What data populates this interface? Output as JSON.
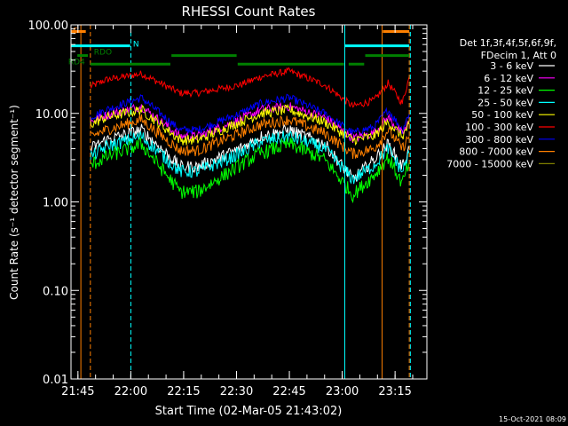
{
  "chart_data": {
    "type": "line",
    "title": "RHESSI Count Rates",
    "xlabel": "Start Time (02-Mar-05 21:43:02)",
    "ylabel": "Count Rate (s⁻¹ detector segment⁻¹)",
    "x_unit": "minutes since 21:43:02",
    "xlim": [
      0,
      101
    ],
    "ylim": [
      0.01,
      100
    ],
    "y_scale": "log",
    "y_ticks": [
      0.01,
      0.1,
      1,
      10,
      100
    ],
    "y_tick_labels": [
      "0.01",
      "0.10",
      "1.00",
      "10.00",
      "100.00"
    ],
    "x_ticks": [
      1.97,
      16.97,
      31.97,
      46.97,
      61.97,
      76.97,
      91.97
    ],
    "x_tick_labels": [
      "21:45",
      "22:00",
      "22:15",
      "22:30",
      "22:45",
      "23:00",
      "23:15"
    ],
    "grid": false,
    "legend": {
      "placement": "top-right",
      "header": [
        "Det 1f,3f,4f,5f,6f,9f,",
        "FDecim 1, Att 0"
      ],
      "entries": [
        {
          "label": "3 - 6 keV",
          "color": "#ffffff"
        },
        {
          "label": "6 - 12 keV",
          "color": "#ff00ff"
        },
        {
          "label": "12 - 25 keV",
          "color": "#00ff00"
        },
        {
          "label": "25 - 50 keV",
          "color": "#00ffff"
        },
        {
          "label": "50 - 100 keV",
          "color": "#ffff00"
        },
        {
          "label": "100 - 300 keV",
          "color": "#ff0000"
        },
        {
          "label": "300 - 800 keV",
          "color": "#0000ff"
        },
        {
          "label": "800 - 7000 keV",
          "color": "#ff8000"
        },
        {
          "label": "7000 - 15000 keV",
          "color": "#808000"
        }
      ]
    },
    "series": [
      {
        "name": "100 - 300 keV",
        "color": "#ff0000",
        "x": [
          5.5,
          10,
          20,
          31,
          36,
          48,
          54,
          62,
          72,
          80,
          86,
          90,
          94,
          96
        ],
        "y": [
          20,
          24,
          28,
          17,
          17,
          21,
          26,
          30,
          21,
          12,
          14,
          22,
          13,
          26
        ]
      },
      {
        "name": "300 - 800 keV",
        "color": "#0000ff",
        "x": [
          5.5,
          10,
          20,
          31,
          36,
          48,
          54,
          62,
          72,
          80,
          86,
          90,
          94,
          96
        ],
        "y": [
          9,
          11,
          15,
          6.5,
          6.5,
          10,
          13,
          15,
          10,
          6,
          7,
          11,
          6.5,
          10
        ]
      },
      {
        "name": "6 - 12 keV",
        "color": "#ff00ff",
        "x": [
          5.5,
          10,
          20,
          31,
          36,
          48,
          54,
          62,
          72,
          80,
          86,
          90,
          94,
          96
        ],
        "y": [
          8,
          9.5,
          12,
          5.5,
          5.5,
          8.5,
          11,
          12,
          9,
          5.2,
          6,
          9,
          5.8,
          8
        ]
      },
      {
        "name": "50 - 100 keV",
        "color": "#ffff00",
        "x": [
          5.5,
          10,
          20,
          31,
          36,
          48,
          54,
          62,
          72,
          80,
          86,
          90,
          94,
          96
        ],
        "y": [
          7.5,
          9,
          11,
          5,
          5,
          8,
          10,
          11,
          8,
          5,
          5.5,
          8,
          5.5,
          7.5
        ]
      },
      {
        "name": "800 - 7000 keV",
        "color": "#ff8000",
        "x": [
          5.5,
          10,
          20,
          31,
          36,
          48,
          54,
          62,
          72,
          80,
          86,
          90,
          94,
          96
        ],
        "y": [
          5.5,
          6.5,
          8.5,
          3.8,
          3.8,
          6,
          7.5,
          8.5,
          6,
          3.5,
          4,
          6.5,
          4,
          5.5
        ]
      },
      {
        "name": "3 - 6 keV",
        "color": "#ffffff",
        "x": [
          5.5,
          10,
          20,
          31,
          36,
          48,
          54,
          62,
          72,
          80,
          86,
          90,
          94,
          96
        ],
        "y": [
          4,
          5,
          6.5,
          2.5,
          2.5,
          4,
          5.5,
          6.5,
          4.5,
          1.8,
          3,
          4.5,
          2.5,
          4
        ]
      },
      {
        "name": "25 - 50 keV",
        "color": "#00ffff",
        "x": [
          5.5,
          10,
          20,
          31,
          36,
          48,
          54,
          62,
          72,
          80,
          86,
          90,
          94,
          96
        ],
        "y": [
          3.2,
          4.2,
          5.5,
          2.2,
          2.2,
          3.5,
          4.8,
          5.5,
          4,
          1.8,
          2.6,
          4,
          2.2,
          3.5
        ]
      },
      {
        "name": "12 - 25 keV",
        "color": "#00ff00",
        "x": [
          5.5,
          10,
          20,
          31,
          36,
          48,
          54,
          62,
          72,
          80,
          86,
          90,
          94,
          96
        ],
        "y": [
          2.6,
          3.2,
          4.5,
          1.3,
          1.3,
          2.6,
          3.6,
          4.5,
          3,
          1.2,
          2,
          3.2,
          1.6,
          2.8
        ]
      }
    ],
    "annotations": {
      "labels": [
        {
          "text": "S",
          "color": "#ff8000",
          "x": 0.5,
          "y": 80
        },
        {
          "text": "N",
          "color": "#00ffff",
          "x": 17.6,
          "y": 57
        },
        {
          "text": "RDO",
          "color": "#008000",
          "x": 6.5,
          "y": 46
        },
        {
          "text": "RD4",
          "color": "#008000",
          "x": -0.8,
          "y": 36
        }
      ],
      "bars": [
        {
          "color": "#ff8000",
          "x0": 0,
          "x1": 4.2,
          "y": 84
        },
        {
          "color": "#ff8000",
          "x0": 88.5,
          "x1": 96,
          "y": 84
        },
        {
          "color": "#00ffff",
          "x0": 0,
          "x1": 16.8,
          "y": 58
        },
        {
          "color": "#00ffff",
          "x0": 77.8,
          "x1": 96,
          "y": 58
        },
        {
          "color": "#008000",
          "x0": 1.8,
          "x1": 4.8,
          "y": 45
        },
        {
          "color": "#008000",
          "x0": 28.5,
          "x1": 47,
          "y": 45
        },
        {
          "color": "#008000",
          "x0": 83.5,
          "x1": 96,
          "y": 45
        },
        {
          "color": "#008000",
          "x0": 5.5,
          "x1": 28.2,
          "y": 36
        },
        {
          "color": "#008000",
          "x0": 47.3,
          "x1": 77.5,
          "y": 36
        },
        {
          "color": "#008000",
          "x0": 78.8,
          "x1": 83.2,
          "y": 36
        }
      ],
      "vlines": [
        {
          "color": "#00ffff",
          "x": 0,
          "dashed": false
        },
        {
          "color": "#ff8000",
          "x": 2.8,
          "dashed": false
        },
        {
          "color": "#ff8000",
          "x": 5.5,
          "dashed": true
        },
        {
          "color": "#00ffff",
          "x": 17.0,
          "dashed": true
        },
        {
          "color": "#00ffff",
          "x": 77.7,
          "dashed": false
        },
        {
          "color": "#ff8000",
          "x": 88.3,
          "dashed": false
        },
        {
          "color": "#ff8000",
          "x": 96.0,
          "dashed": true
        },
        {
          "color": "#00ffff",
          "x": 96.3,
          "dashed": true
        }
      ]
    }
  },
  "footer": {
    "date_stamp": "15-Oct-2021 08:09"
  }
}
